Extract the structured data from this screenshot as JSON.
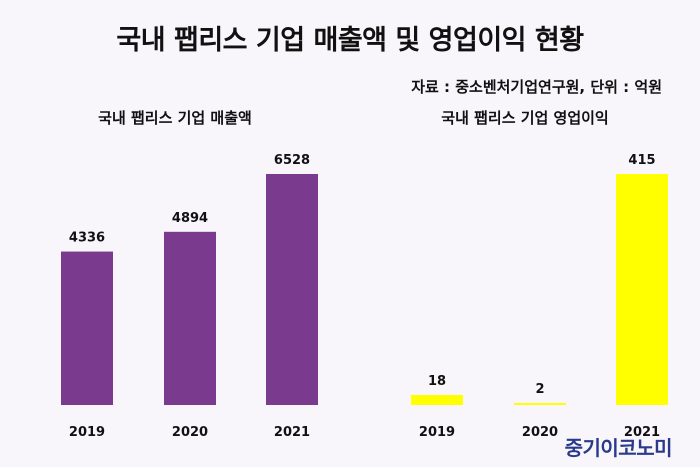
{
  "title": "국내 팹리스 기업 매출액 및 영업이익 현황",
  "source_text": "자료 : 중소벤처기업연구원, 단위 : 억원",
  "brand_logo": "중기이코노미",
  "chart_data": [
    {
      "type": "bar",
      "title": "국내 팹리스 기업 매출액",
      "categories": [
        "2019",
        "2020",
        "2021"
      ],
      "values": [
        4336,
        4894,
        6528
      ],
      "color": "#7a3a8e",
      "ylim": [
        0,
        6528
      ]
    },
    {
      "type": "bar",
      "title": "국내 팹리스 기업 영업이익",
      "categories": [
        "2019",
        "2020",
        "2021"
      ],
      "values": [
        18,
        2,
        415
      ],
      "color": "#ffff00",
      "ylim": [
        0,
        415
      ]
    }
  ]
}
